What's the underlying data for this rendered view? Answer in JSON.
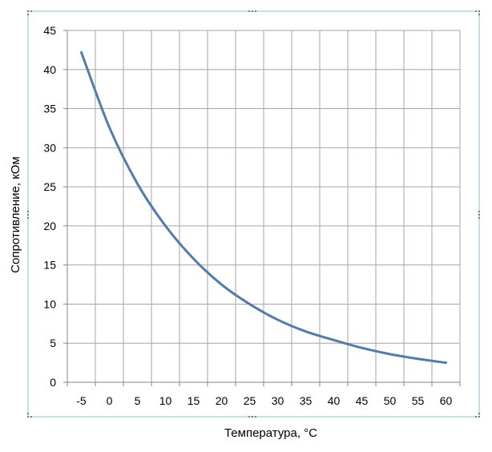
{
  "chart_data": {
    "type": "line",
    "title": "",
    "xlabel": "Температура,  °C",
    "ylabel": "Сопротивление, кОм",
    "x_ticks": [
      "-5",
      "0",
      "5",
      "10",
      "15",
      "20",
      "25",
      "30",
      "35",
      "40",
      "45",
      "50",
      "55",
      "60"
    ],
    "y_ticks": [
      "0",
      "5",
      "10",
      "15",
      "20",
      "25",
      "30",
      "35",
      "40",
      "45"
    ],
    "xlim": [
      -5,
      60
    ],
    "ylim": [
      0,
      45
    ],
    "grid": true,
    "legend": "none",
    "series": [
      {
        "x": [
          -5,
          0,
          5,
          10,
          15,
          20,
          25,
          30,
          35,
          40,
          45,
          50,
          55,
          60
        ],
        "y": [
          42.2,
          32.6,
          25.4,
          20.0,
          15.8,
          12.5,
          10.0,
          8.0,
          6.5,
          5.4,
          4.4,
          3.6,
          3.0,
          2.5
        ]
      }
    ],
    "colors": {
      "line": "#4f7bad",
      "grid": "#a6a6a6",
      "frame": "#bfe3ea",
      "text": "#000000"
    }
  }
}
